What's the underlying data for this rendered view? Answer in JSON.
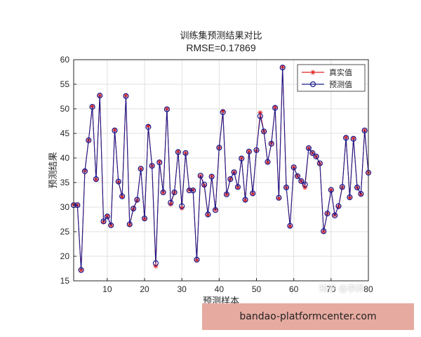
{
  "chart_data": {
    "type": "line",
    "title": "训练集预测结果对比",
    "subtitle": "RMSE=0.17869",
    "xlabel": "预测样本",
    "ylabel": "预测结果",
    "xlim": [
      1,
      80
    ],
    "ylim": [
      15,
      60
    ],
    "xticks": [
      10,
      20,
      30,
      40,
      50,
      60,
      70,
      80
    ],
    "yticks": [
      15,
      20,
      25,
      30,
      35,
      40,
      45,
      50,
      55,
      60
    ],
    "grid": true,
    "legend_position": "top-right",
    "x": [
      1,
      2,
      3,
      4,
      5,
      6,
      7,
      8,
      9,
      10,
      11,
      12,
      13,
      14,
      15,
      16,
      17,
      18,
      19,
      20,
      21,
      22,
      23,
      24,
      25,
      26,
      27,
      28,
      29,
      30,
      31,
      32,
      33,
      34,
      35,
      36,
      37,
      38,
      39,
      40,
      41,
      42,
      43,
      44,
      45,
      46,
      47,
      48,
      49,
      50,
      51,
      52,
      53,
      54,
      55,
      56,
      57,
      58,
      59,
      60,
      61,
      62,
      63,
      64,
      65,
      66,
      67,
      68,
      69,
      70,
      71,
      72,
      73,
      74,
      75,
      76,
      77,
      78,
      79,
      80
    ],
    "series": [
      {
        "name": "真实值",
        "color": "#e02020",
        "marker": "asterisk",
        "values": [
          30.5,
          30.4,
          17.2,
          37.4,
          43.6,
          50.5,
          35.6,
          52.7,
          27.0,
          28.2,
          26.3,
          45.7,
          35.1,
          32.1,
          52.7,
          26.4,
          29.6,
          31.4,
          37.8,
          27.6,
          46.5,
          38.4,
          18.0,
          39.2,
          33.0,
          50.0,
          30.6,
          33.0,
          41.3,
          29.8,
          41.0,
          33.5,
          33.5,
          19.2,
          36.3,
          34.4,
          28.4,
          36.3,
          29.5,
          42.1,
          49.5,
          32.6,
          35.7,
          37.1,
          34.0,
          40.0,
          31.4,
          41.3,
          32.7,
          41.5,
          49.2,
          45.4,
          39.1,
          43.0,
          50.3,
          31.8,
          58.5,
          34.0,
          26.1,
          38.1,
          36.3,
          35.3,
          34.0,
          42.0,
          41.0,
          40.3,
          38.8,
          25.0,
          28.7,
          33.5,
          28.4,
          30.1,
          34.0,
          44.2,
          31.9,
          44.0,
          34.0,
          32.6,
          45.6,
          37.0
        ]
      },
      {
        "name": "预测值",
        "color": "#1a1a8c",
        "marker": "circle",
        "values": [
          30.4,
          30.4,
          17.2,
          37.3,
          43.6,
          50.4,
          35.7,
          52.7,
          27.1,
          28.1,
          26.3,
          45.6,
          35.2,
          32.2,
          52.6,
          26.5,
          29.7,
          31.5,
          37.8,
          27.7,
          46.3,
          38.4,
          18.6,
          39.1,
          33.0,
          49.9,
          30.9,
          33.0,
          41.2,
          30.2,
          41.0,
          33.4,
          33.4,
          19.3,
          36.4,
          34.6,
          28.5,
          36.2,
          29.4,
          42.1,
          49.3,
          32.6,
          35.7,
          37.1,
          34.1,
          39.9,
          31.5,
          41.3,
          32.8,
          41.6,
          48.5,
          45.4,
          39.2,
          42.9,
          50.2,
          31.9,
          58.4,
          34.0,
          26.2,
          38.1,
          36.3,
          35.3,
          34.6,
          42.0,
          41.0,
          40.3,
          38.9,
          25.1,
          28.7,
          33.5,
          28.3,
          30.2,
          34.1,
          44.1,
          32.0,
          43.9,
          34.0,
          32.7,
          45.6,
          37.0
        ]
      }
    ]
  },
  "watermark": "知乎 @李烨",
  "banner": {
    "text": "bandao-platformcenter.com",
    "color": "#e6aaa0"
  }
}
